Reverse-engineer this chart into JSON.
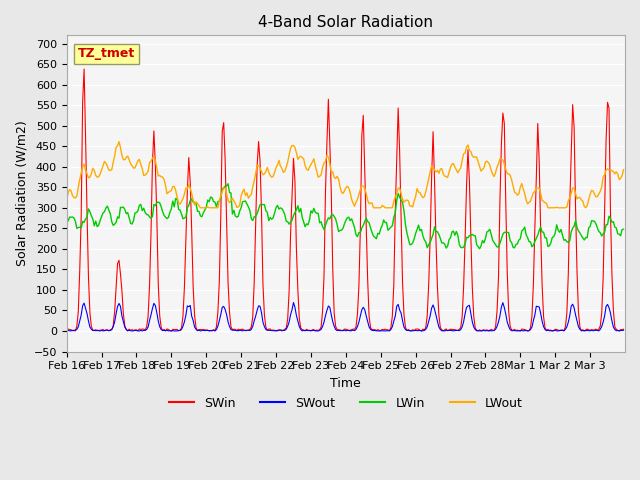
{
  "title": "4-Band Solar Radiation",
  "xlabel": "Time",
  "ylabel": "Solar Radiation (W/m2)",
  "ylim": [
    -50,
    720
  ],
  "yticks": [
    -50,
    0,
    50,
    100,
    150,
    200,
    250,
    300,
    350,
    400,
    450,
    500,
    550,
    600,
    650,
    700
  ],
  "tick_labels": [
    "Feb 16",
    "Feb 17",
    "Feb 18",
    "Feb 19",
    "Feb 20",
    "Feb 21",
    "Feb 22",
    "Feb 23",
    "Feb 24",
    "Feb 25",
    "Feb 26",
    "Feb 27",
    "Feb 28",
    "Mar 1",
    "Mar 2",
    "Mar 3"
  ],
  "annotation_text": "TZ_tmet",
  "annotation_color": "#cc0000",
  "annotation_bg": "#ffff99",
  "colors": {
    "SWin": "#ff0000",
    "SWout": "#0000ff",
    "LWin": "#00cc00",
    "LWout": "#ffaa00"
  },
  "background_color": "#e8e8e8",
  "plot_bg": "#f5f5f5",
  "n_days": 16,
  "hours_per_day": 24
}
